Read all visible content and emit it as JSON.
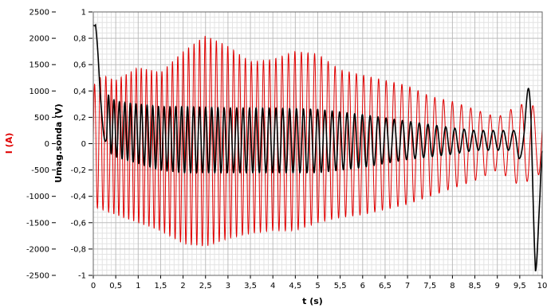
{
  "chart_data": {
    "type": "line",
    "title": "",
    "xlabel": "t (s)",
    "xlim": [
      0,
      10
    ],
    "x_ticks": [
      "0",
      "0,5",
      "1",
      "1,5",
      "2",
      "2,5",
      "3",
      "3,5",
      "4",
      "4,5",
      "5",
      "5,5",
      "6",
      "6,5",
      "7",
      "7,5",
      "8",
      "8,5",
      "9",
      "9,5",
      "10"
    ],
    "y_left": {
      "label": "I (A)",
      "color": "#e00000",
      "lim": [
        -2500,
        2500
      ],
      "ticks": [
        "2500",
        "2000",
        "1500",
        "1000",
        "500",
        "0",
        "-500",
        "-1000",
        "-1500",
        "-2000",
        "-2500"
      ]
    },
    "y_right": {
      "label": "Umag.sonda (V)",
      "color": "#000000",
      "lim": [
        -1,
        1
      ],
      "ticks": [
        "1",
        "0,8",
        "0,6",
        "0,4",
        "0,2",
        "0",
        "-0,2",
        "-0,4",
        "-0,6",
        "-0,8",
        "-1"
      ]
    },
    "grid": true,
    "series": [
      {
        "axis": "left",
        "color": "#e00000",
        "envelope_t": [
          0,
          0.2,
          0.5,
          1.0,
          1.5,
          2.0,
          2.5,
          3.0,
          3.5,
          4.0,
          4.5,
          5.0,
          5.5,
          6.0,
          6.5,
          7.0,
          7.5,
          8.0,
          8.5,
          9.0,
          9.5,
          10.0
        ],
        "envelope_upper": [
          1100,
          1300,
          1200,
          1450,
          1350,
          1750,
          2050,
          1850,
          1550,
          1600,
          1750,
          1700,
          1400,
          1300,
          1200,
          1100,
          900,
          800,
          650,
          500,
          750,
          700
        ],
        "envelope_lower": [
          -1200,
          -1250,
          -1350,
          -1500,
          -1650,
          -1900,
          -1950,
          -1800,
          -1700,
          -1650,
          -1650,
          -1500,
          -1400,
          -1350,
          -1250,
          -1150,
          -1000,
          -850,
          -700,
          -500,
          -800,
          -550
        ]
      },
      {
        "axis": "right",
        "color": "#000000",
        "envelope_t": [
          0,
          0.05,
          0.15,
          0.3,
          0.5,
          1.0,
          1.5,
          2.0,
          3.0,
          4.0,
          5.0,
          6.0,
          7.0,
          8.0,
          8.5,
          9.0,
          9.4,
          9.6,
          9.75,
          9.85,
          9.95,
          10.0
        ],
        "envelope_upper": [
          0.95,
          0.92,
          0.5,
          0.38,
          0.32,
          0.3,
          0.28,
          0.28,
          0.27,
          0.27,
          0.26,
          0.22,
          0.17,
          0.12,
          0.1,
          0.1,
          0.1,
          0.2,
          0.6,
          0.3,
          0.0,
          0.0
        ],
        "envelope_lower": [
          0.85,
          0.7,
          0.2,
          -0.05,
          -0.1,
          -0.15,
          -0.2,
          -0.22,
          -0.22,
          -0.22,
          -0.22,
          -0.18,
          -0.12,
          -0.08,
          -0.05,
          -0.05,
          -0.05,
          -0.2,
          -0.6,
          -1.0,
          -0.6,
          -0.2
        ]
      }
    ]
  }
}
